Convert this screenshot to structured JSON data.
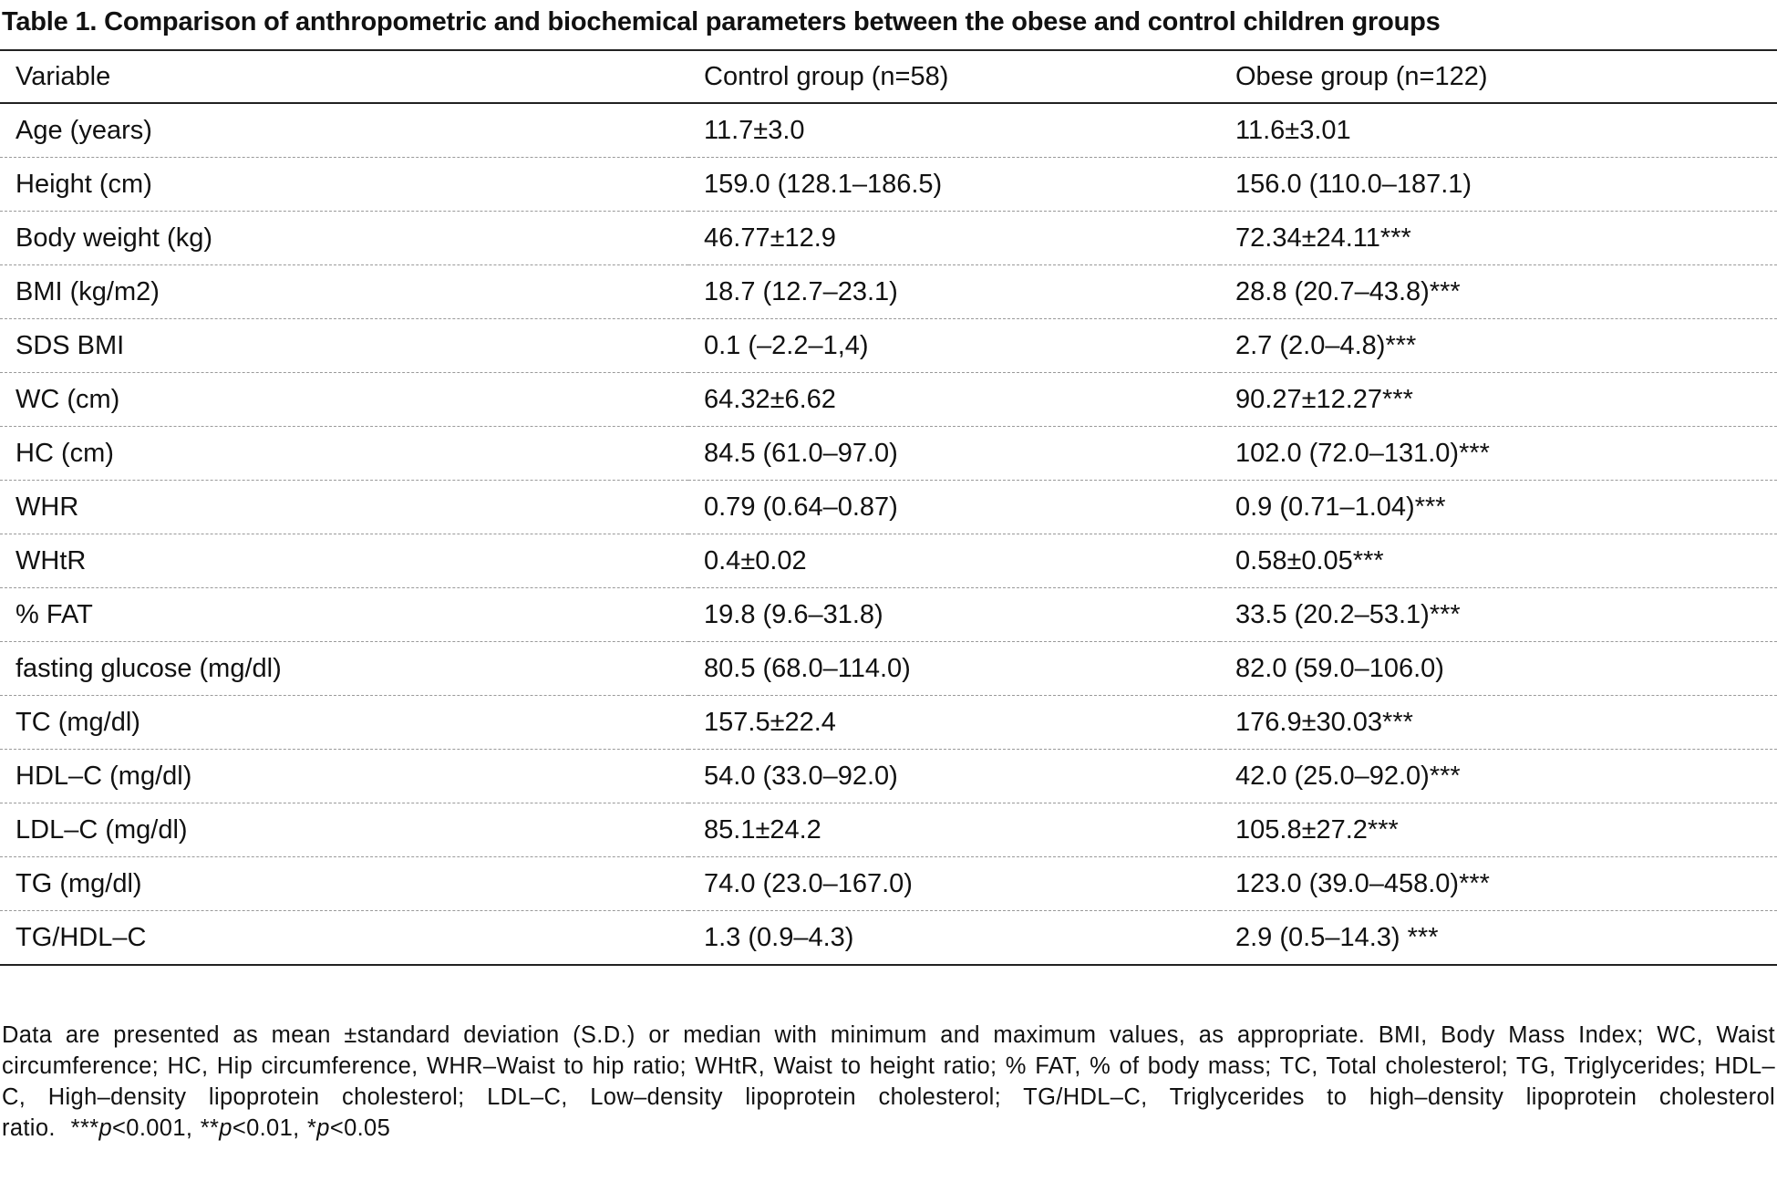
{
  "title": "Table 1. Comparison of anthropometric and biochemical parameters between the obese and control children groups",
  "table": {
    "headers": [
      "Variable",
      "Control group (n=58)",
      "Obese group (n=122)"
    ],
    "rows": [
      [
        "Age (years)",
        "11.7±3.0",
        "11.6±3.01"
      ],
      [
        "Height (cm)",
        "159.0 (128.1–186.5)",
        "156.0 (110.0–187.1)"
      ],
      [
        "Body weight (kg)",
        "46.77±12.9",
        "72.34±24.11***"
      ],
      [
        "BMI (kg/m2)",
        "18.7 (12.7–23.1)",
        "28.8 (20.7–43.8)***"
      ],
      [
        "SDS BMI",
        "0.1 (–2.2–1,4)",
        "2.7 (2.0–4.8)***"
      ],
      [
        "WC (cm)",
        "64.32±6.62",
        "90.27±12.27***"
      ],
      [
        "HC (cm)",
        "84.5 (61.0–97.0)",
        "102.0 (72.0–131.0)***"
      ],
      [
        "WHR",
        "0.79 (0.64–0.87)",
        "0.9 (0.71–1.04)***"
      ],
      [
        "WHtR",
        "0.4±0.02",
        "0.58±0.05***"
      ],
      [
        "% FAT",
        "19.8 (9.6–31.8)",
        "33.5 (20.2–53.1)***"
      ],
      [
        "fasting glucose (mg/dl)",
        "80.5 (68.0–114.0)",
        "82.0 (59.0–106.0)"
      ],
      [
        "TC (mg/dl)",
        "157.5±22.4",
        "176.9±30.03***"
      ],
      [
        "HDL–C (mg/dl)",
        "54.0 (33.0–92.0)",
        "42.0 (25.0–92.0)***"
      ],
      [
        "LDL–C (mg/dl)",
        "85.1±24.2",
        "105.8±27.2***"
      ],
      [
        "TG (mg/dl)",
        "74.0 (23.0–167.0)",
        "123.0 (39.0–458.0)***"
      ],
      [
        "TG/HDL–C",
        "1.3 (0.9–4.3)",
        "2.9 (0.5–14.3) ***"
      ]
    ]
  },
  "footnote": {
    "main": "Data are presented as mean ±standard deviation (S.D.) or median with minimum and maximum values, as appropriate. BMI, Body Mass Index; WC, Waist circumference; HC, Hip circumference, WHR–Waist to hip ratio; WHtR, Waist to height ratio; % FAT, % of body mass; TC, Total cholesterol; TG, Triglycerides; HDL–C, High–density lipoprotein cholesterol; LDL–C, Low–density lipoprotein cholesterol; TG/HDL–C, Triglycerides to high–density lipoprotein cholesterol ratio.",
    "sig1_stars": "***",
    "sig1_p": "p",
    "sig1_rest": "<0.001,",
    "sig2_stars": "**",
    "sig2_p": "p",
    "sig2_rest": "<0.01,",
    "sig3_stars": "*",
    "sig3_p": "p",
    "sig3_rest": "<0.05"
  }
}
